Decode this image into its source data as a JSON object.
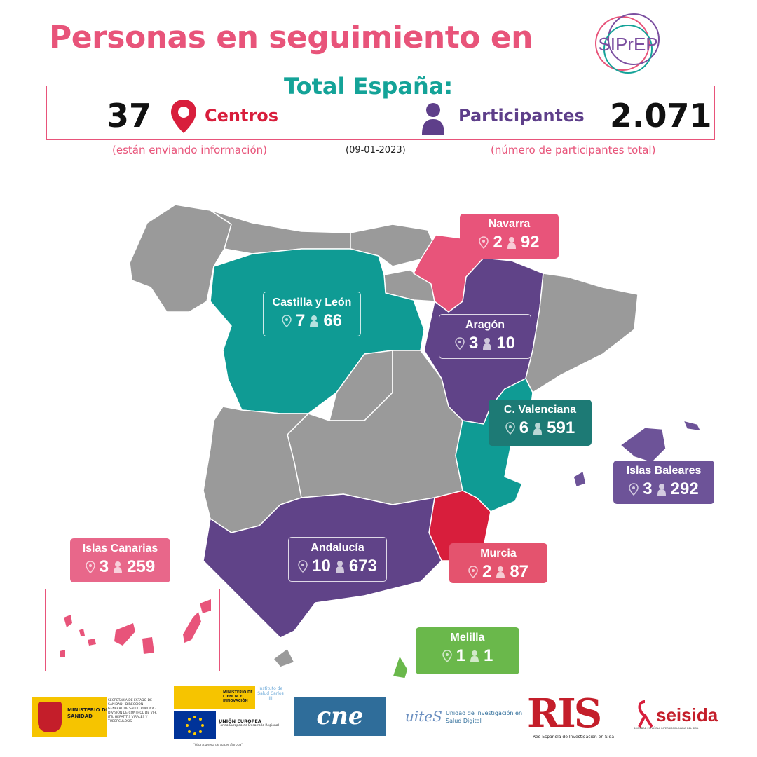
{
  "header": {
    "title": "Personas en seguimiento en",
    "logo_text": "SIPrEP",
    "summary_label": "Total España:",
    "centros_count": "37",
    "centros_label": "Centros",
    "participantes_label": "Participantes",
    "participantes_count": "2.071",
    "centros_note": "(están enviando información)",
    "date": "(09-01-2023)",
    "participantes_note": "(número de participantes total)"
  },
  "icons": {
    "centros": "map-pin-icon",
    "participantes": "person-icon"
  },
  "colors": {
    "pink": "#e8547a",
    "teal": "#0f9b94",
    "purple": "#604388",
    "red": "#d81e3c",
    "green": "#6ab84b",
    "grey": "#9a9a9a"
  },
  "regions": [
    {
      "name": "Navarra",
      "centros": "2",
      "participantes": "92",
      "color": "#e8547a"
    },
    {
      "name": "Castilla y León",
      "centros": "7",
      "participantes": "66",
      "color": "#0f9b94"
    },
    {
      "name": "Aragón",
      "centros": "3",
      "participantes": "10",
      "color": "#604388"
    },
    {
      "name": "C. Valenciana",
      "centros": "6",
      "participantes": "591",
      "color": "#1d7a75"
    },
    {
      "name": "Islas Baleares",
      "centros": "3",
      "participantes": "292",
      "color": "#6d5398"
    },
    {
      "name": "Islas Canarias",
      "centros": "3",
      "participantes": "259",
      "color": "#e8678a"
    },
    {
      "name": "Andalucía",
      "centros": "10",
      "participantes": "673",
      "color": "#604388"
    },
    {
      "name": "Murcia",
      "centros": "2",
      "participantes": "87",
      "color": "#e4536e"
    },
    {
      "name": "Melilla",
      "centros": "1",
      "participantes": "1",
      "color": "#6ab84b"
    }
  ],
  "logos": {
    "sanidad": "MINISTERIO DE SANIDAD",
    "sanidad_detail": "SECRETARÍA DE ESTADO DE SANIDAD · DIRECCIÓN GENERAL DE SALUD PÚBLICA · DIVISIÓN DE CONTROL DE VIH, ITS, HEPATITIS VIRALES Y TUBERCULOSIS",
    "gobierno": "MINISTERIO DE CIENCIA E INNOVACIÓN",
    "isciii": "Instituto de Salud Carlos III",
    "ue": "UNIÓN EUROPEA",
    "ue_fund": "Fondo Europeo de Desarrollo Regional",
    "ue_tagline": "\"Una manera de hacer Europa\"",
    "cne": "cne",
    "uites": "uiteS",
    "uites_text": "Unidad de Investigación en Salud Digital",
    "ris": "RIS",
    "ris_text": "Red Española de Investigación en Sida",
    "seisida": "seisida",
    "seisida_text": "SOCIEDAD ESPAÑOLA INTERDISCIPLINARIA DEL SIDA"
  }
}
